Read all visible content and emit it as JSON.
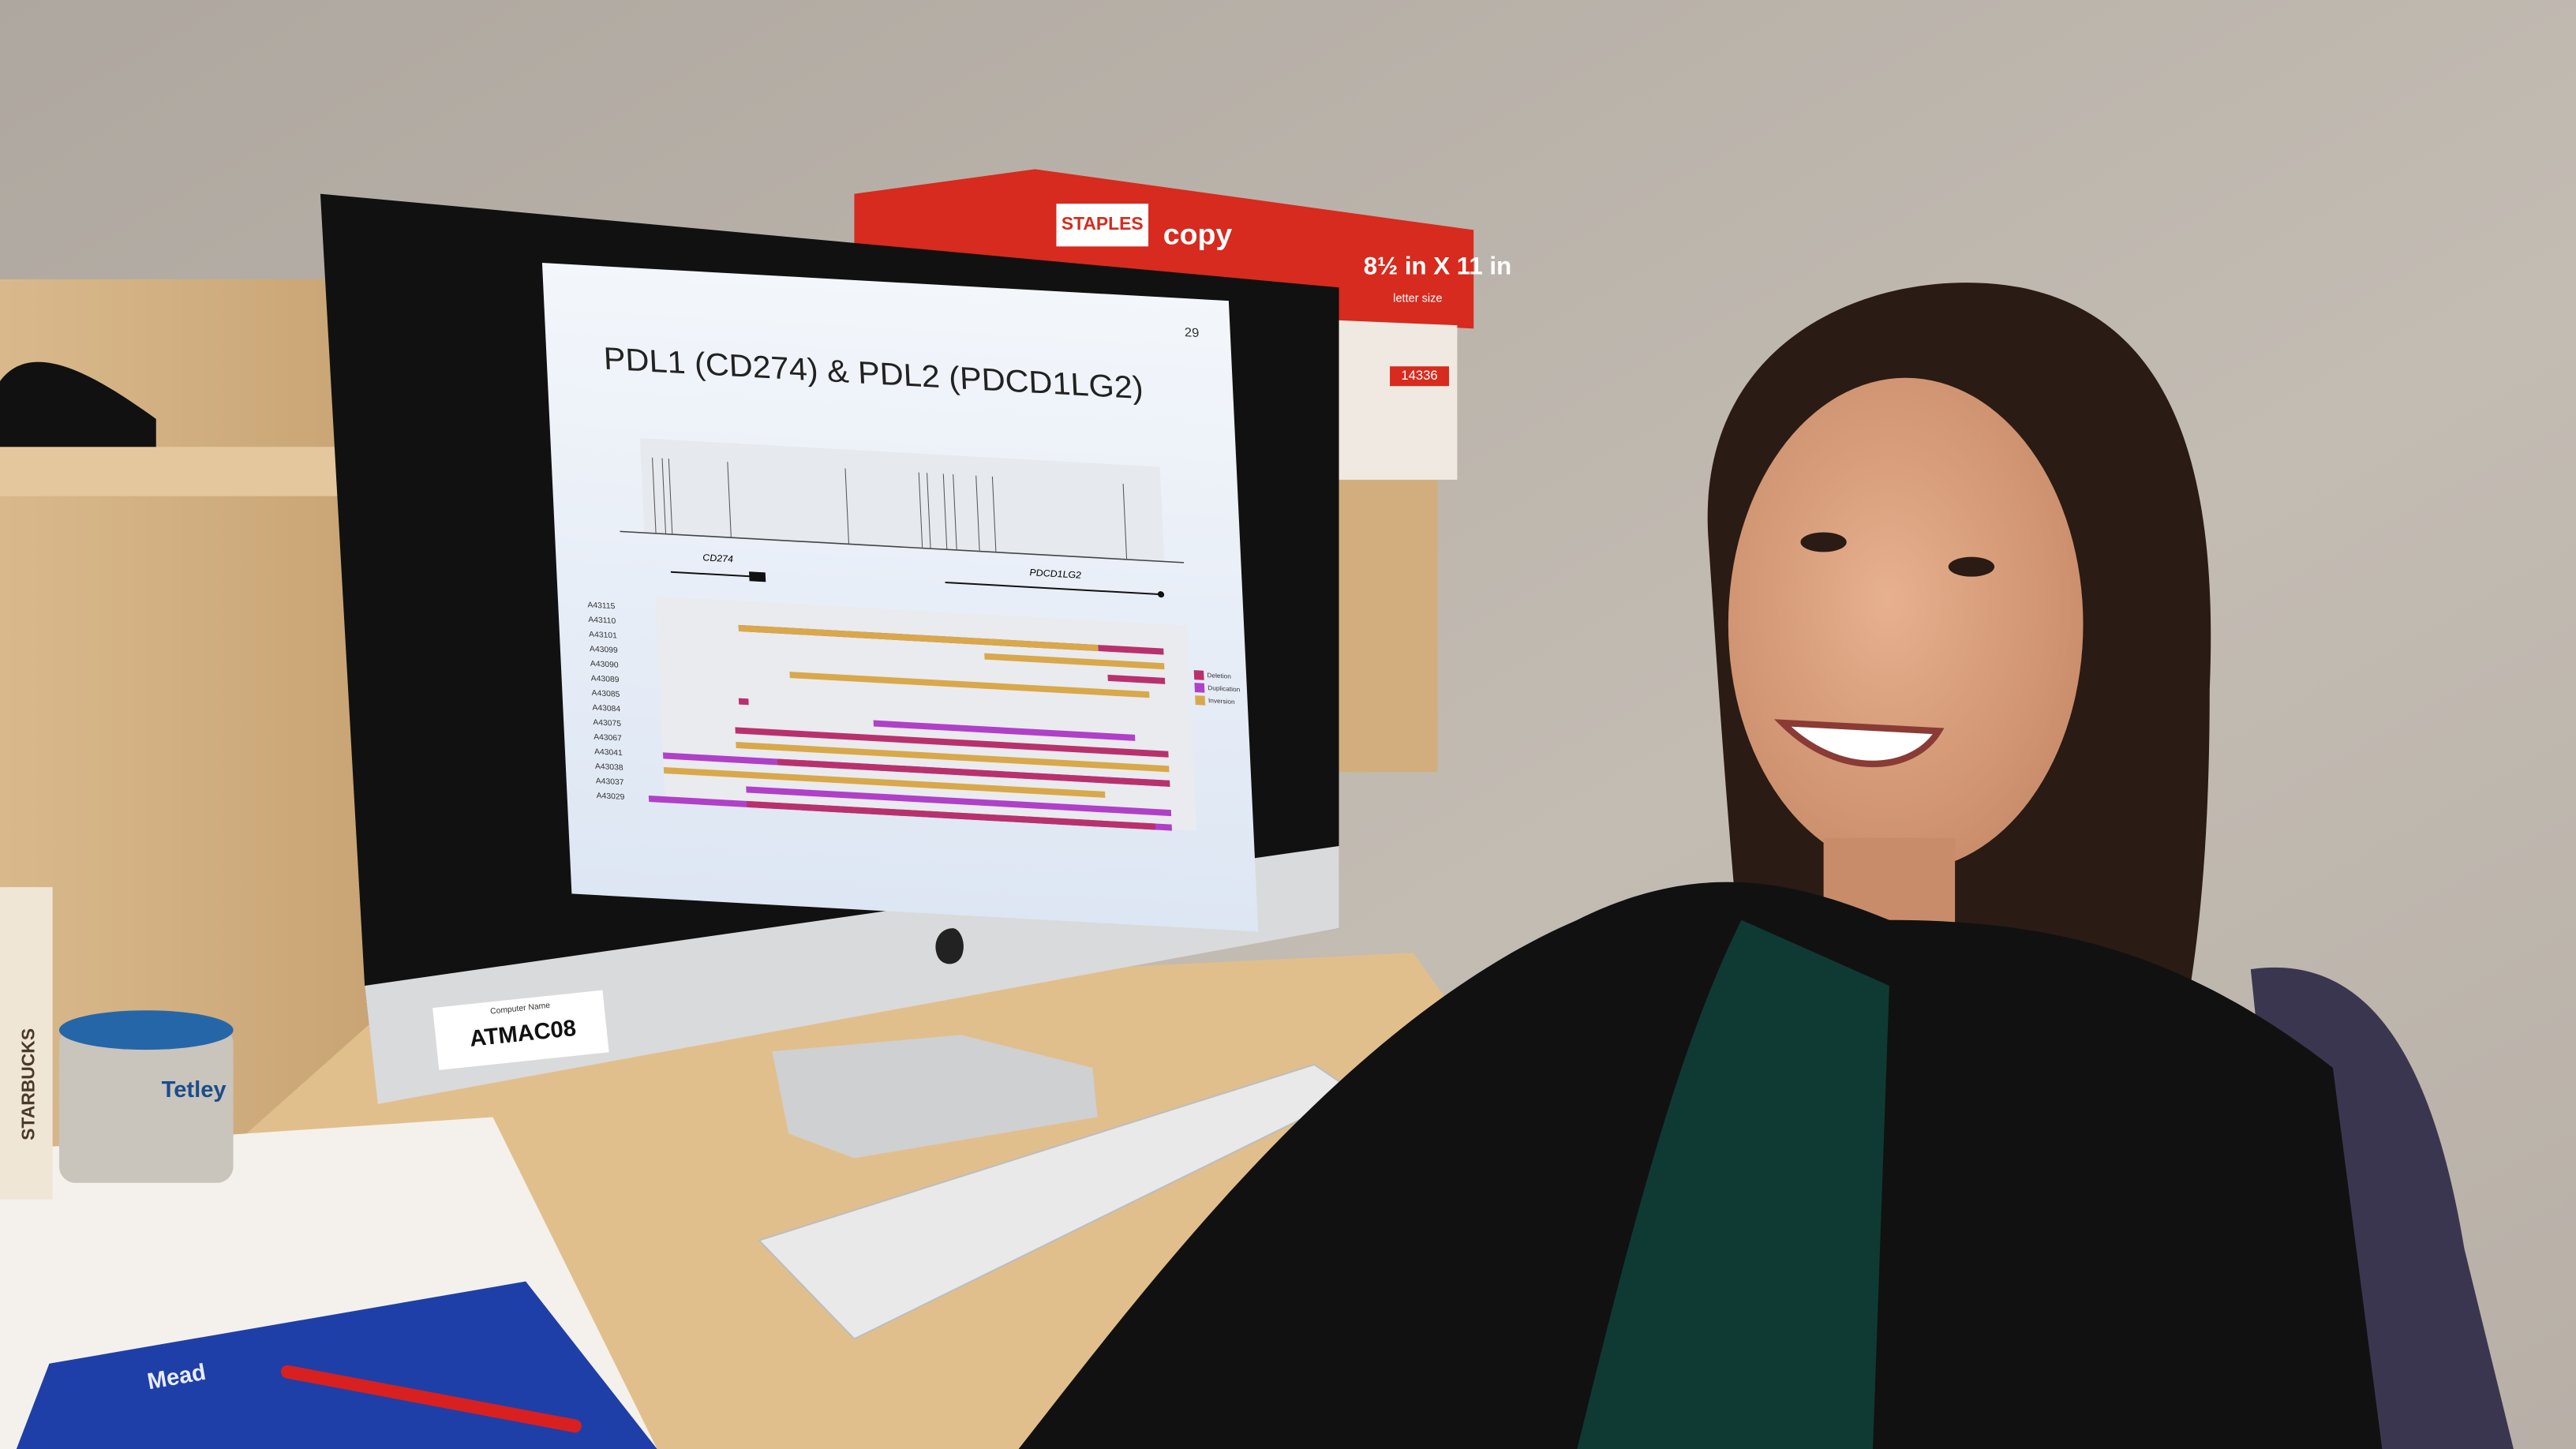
{
  "screen": {
    "slide_number": "29",
    "title": "PDL1 (CD274) & PDL2 (PDCD1LG2)",
    "genes": [
      "CD274",
      "PDCD1LG2"
    ],
    "samples": [
      "A43115",
      "A43110",
      "A43101",
      "A43099",
      "A43090",
      "A43089",
      "A43085",
      "A43084",
      "A43075",
      "A43067",
      "A43041",
      "A43038",
      "A43037",
      "A43029"
    ],
    "legend": [
      "Deletion",
      "Duplication",
      "Inversion"
    ]
  },
  "computer_label": {
    "caption": "Computer Name",
    "name": "ATMAC08"
  },
  "paper_box": {
    "brand": "STAPLES",
    "product": "copy",
    "size": "8½ in X 11 in",
    "subtitle": "letter size",
    "number": "14336"
  },
  "cup": "STARBUCKS",
  "tin": "Tetley",
  "notebook": "Mead"
}
